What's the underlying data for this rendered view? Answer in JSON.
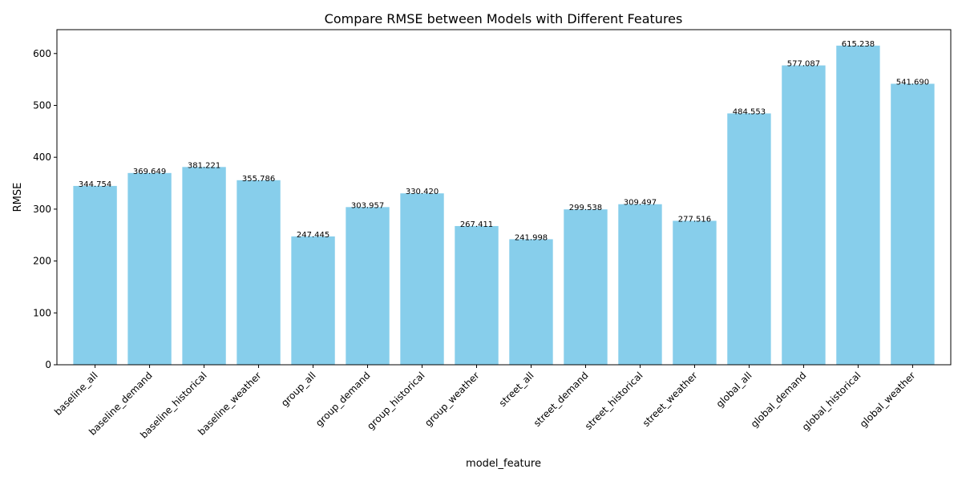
{
  "chart_data": {
    "type": "bar",
    "title": "Compare RMSE between Models with Different Features",
    "xlabel": "model_feature",
    "ylabel": "RMSE",
    "categories": [
      "baseline_all",
      "baseline_demand",
      "baseline_historical",
      "baseline_weather",
      "group_all",
      "group_demand",
      "group_historical",
      "group_weather",
      "street_all",
      "street_demand",
      "street_historical",
      "street_weather",
      "global_all",
      "global_demand",
      "global_historical",
      "global_weather"
    ],
    "values": [
      344.754,
      369.649,
      381.221,
      355.786,
      247.445,
      303.957,
      330.42,
      267.411,
      241.998,
      299.538,
      309.497,
      277.516,
      484.553,
      577.087,
      615.238,
      541.69
    ],
    "value_labels": [
      "344.754",
      "369.649",
      "381.221",
      "355.786",
      "247.445",
      "303.957",
      "330.420",
      "267.411",
      "241.998",
      "299.538",
      "309.497",
      "277.516",
      "484.553",
      "577.087",
      "615.238",
      "541.690"
    ],
    "y_ticks": [
      0,
      100,
      200,
      300,
      400,
      500,
      600
    ],
    "ylim": [
      0,
      646
    ],
    "bar_color": "#87ceeb",
    "grid": false,
    "legend": "none"
  }
}
